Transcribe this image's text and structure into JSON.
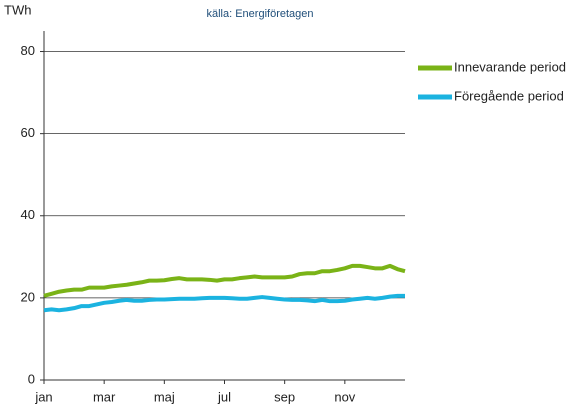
{
  "chart_data": {
    "type": "line",
    "title": "källa: Energiföretagen",
    "ylabel": "TWh",
    "x": [
      0,
      0.25,
      0.5,
      0.75,
      1,
      1.25,
      1.5,
      1.75,
      2,
      2.25,
      2.5,
      2.75,
      3,
      3.25,
      3.5,
      3.75,
      4,
      4.25,
      4.5,
      4.75,
      5,
      5.25,
      5.5,
      5.75,
      6,
      6.25,
      6.5,
      6.75,
      7,
      7.25,
      7.5,
      7.75,
      8,
      8.25,
      8.5,
      8.75,
      9,
      9.25,
      9.5,
      9.75,
      10,
      10.25,
      10.5,
      10.75,
      11,
      11.25,
      11.5,
      11.75,
      12
    ],
    "series": [
      {
        "name": "Innevarande period",
        "color": "#7ab317",
        "values": [
          20.5,
          21,
          21.5,
          21.8,
          22,
          22,
          22.5,
          22.5,
          22.5,
          22.8,
          23,
          23.2,
          23.5,
          23.8,
          24.2,
          24.2,
          24.3,
          24.6,
          24.8,
          24.5,
          24.5,
          24.5,
          24.4,
          24.2,
          24.5,
          24.5,
          24.8,
          25,
          25.2,
          25,
          25,
          25,
          25,
          25.2,
          25.8,
          26,
          26,
          26.5,
          26.5,
          26.8,
          27.2,
          27.8,
          27.8,
          27.5,
          27.2,
          27.2,
          27.8,
          27,
          26.5
        ]
      },
      {
        "name": "Föregående period",
        "color": "#1bb3e0",
        "values": [
          17,
          17.2,
          17,
          17.2,
          17.5,
          18,
          18,
          18.4,
          18.8,
          19,
          19.3,
          19.5,
          19.3,
          19.3,
          19.5,
          19.6,
          19.6,
          19.7,
          19.8,
          19.8,
          19.8,
          19.9,
          20,
          20,
          20,
          19.9,
          19.8,
          19.8,
          20,
          20.2,
          20,
          19.8,
          19.6,
          19.5,
          19.5,
          19.4,
          19.2,
          19.5,
          19.2,
          19.2,
          19.3,
          19.6,
          19.8,
          20,
          19.8,
          20,
          20.3,
          20.5,
          20.5
        ]
      }
    ],
    "xlim": [
      0,
      12
    ],
    "xticks": [
      {
        "value": 0,
        "label": "jan"
      },
      {
        "value": 2,
        "label": "mar"
      },
      {
        "value": 4,
        "label": "maj"
      },
      {
        "value": 6,
        "label": "jul"
      },
      {
        "value": 8,
        "label": "sep"
      },
      {
        "value": 10,
        "label": "nov"
      }
    ],
    "ylim": [
      0,
      85
    ],
    "yticks": [
      0,
      20,
      40,
      60,
      80
    ],
    "grid": true,
    "legend": "right"
  }
}
